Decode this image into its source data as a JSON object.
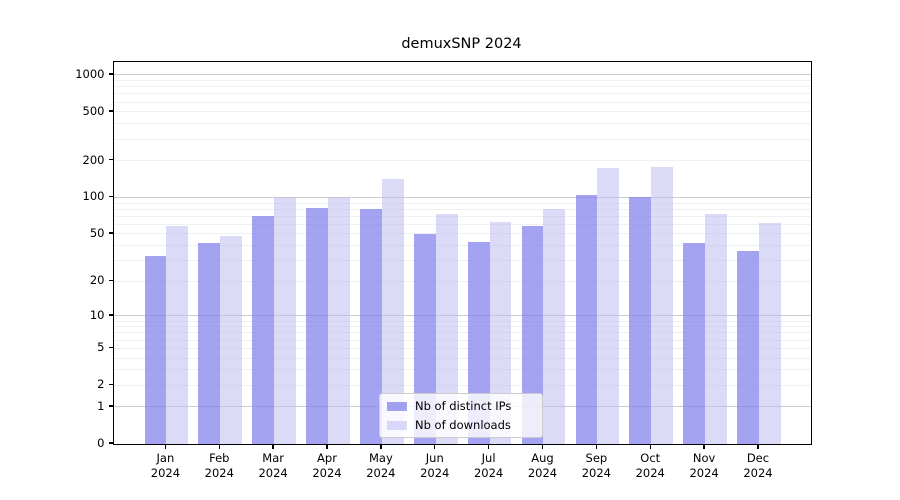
{
  "colors": {
    "ips_bar": "rgba(128,128,235,0.72)",
    "downloads_bar": "rgba(190,190,242,0.55)",
    "major_grid": "#cccccc",
    "minor_grid": "#f0f0f0",
    "spine": "#000000",
    "background": "#ffffff"
  },
  "chart_data": {
    "type": "bar",
    "title": "demuxSNP 2024",
    "categories": [
      "Jan 2024",
      "Feb 2024",
      "Mar 2024",
      "Apr 2024",
      "May 2024",
      "Jun 2024",
      "Jul 2024",
      "Aug 2024",
      "Sep 2024",
      "Oct 2024",
      "Nov 2024",
      "Dec 2024"
    ],
    "series": [
      {
        "name": "Nb of distinct IPs",
        "color": "rgba(128,128,235,0.72)",
        "values": [
          33,
          42,
          70,
          82,
          80,
          50,
          43,
          58,
          104,
          100,
          42,
          36
        ]
      },
      {
        "name": "Nb of downloads",
        "color": "rgba(190,190,242,0.55)",
        "values": [
          58,
          48,
          100,
          100,
          143,
          73,
          63,
          80,
          173,
          179,
          73,
          62
        ]
      }
    ],
    "xlabel": "",
    "ylabel": "",
    "yscale": "log1p",
    "yticks": [
      0,
      1,
      2,
      5,
      10,
      20,
      50,
      100,
      200,
      500,
      1000
    ],
    "ylim": [
      0,
      1280
    ],
    "grid": "horizontal, log minor lines",
    "legend_position": "lower center"
  },
  "legend": {
    "items": [
      {
        "label": "Nb of distinct IPs"
      },
      {
        "label": "Nb of downloads"
      }
    ]
  }
}
